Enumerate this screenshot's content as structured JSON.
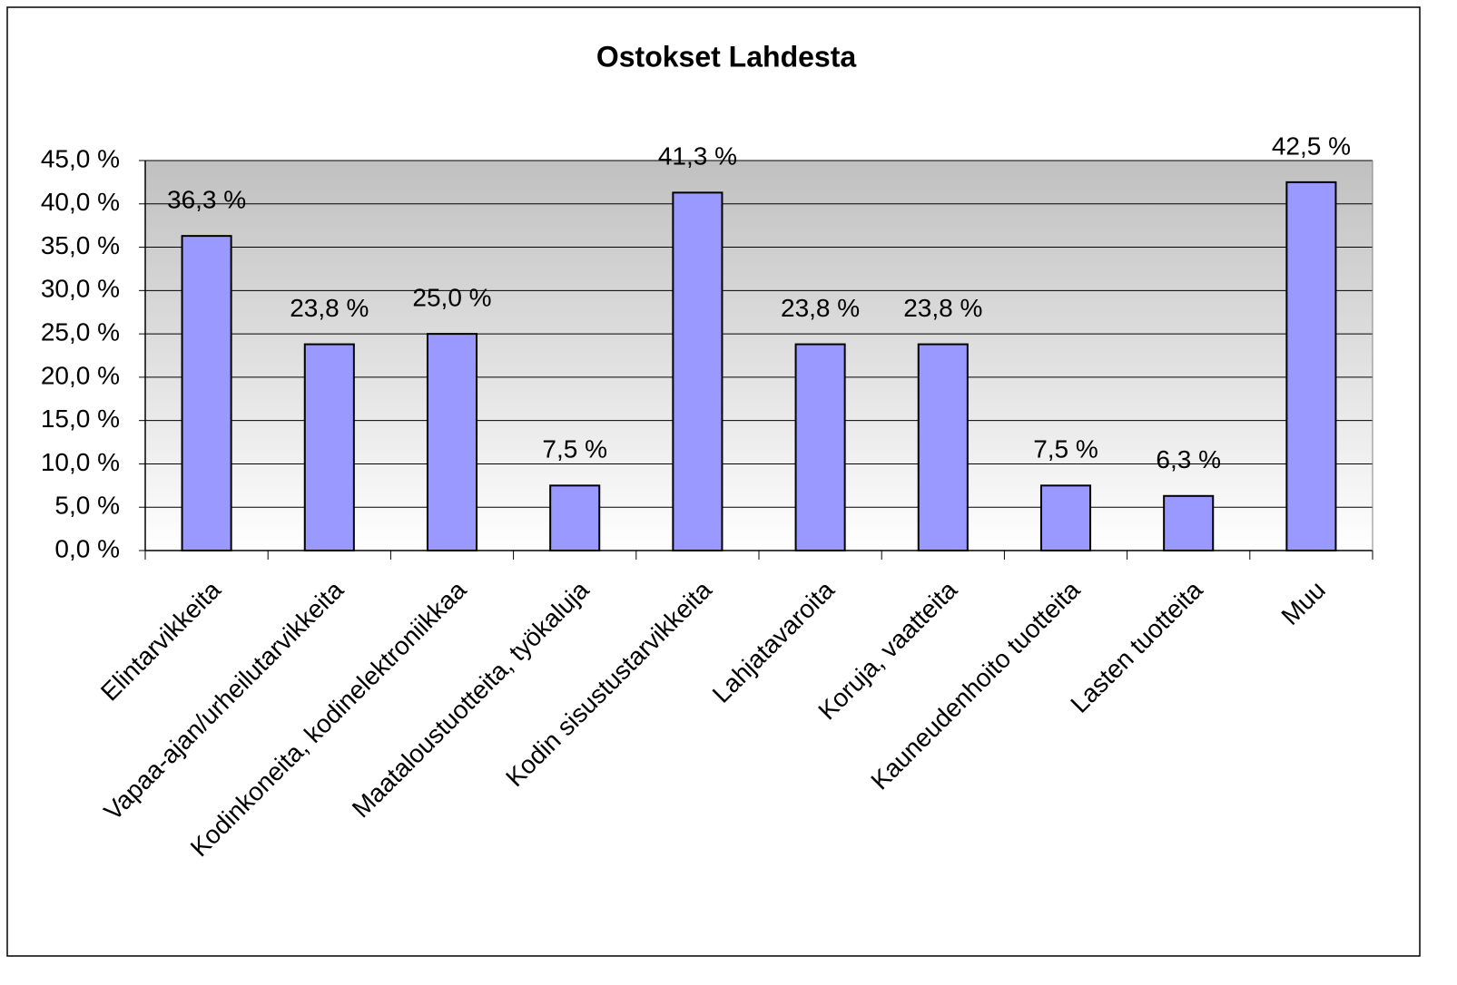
{
  "chart_data": {
    "type": "bar",
    "title": "Ostokset Lahdesta",
    "categories": [
      "Elintarvikkeita",
      "Vapaa-ajan/urheilutarvikkeita",
      "Kodinkoneita, kodinelektroniikkaa",
      "Maataloustuotteita, työkaluja",
      "Kodin sisustustarvikkeita",
      "Lahjatavaroita",
      "Koruja, vaatteita",
      "Kauneudenhoito tuotteita",
      "Lasten tuotteita",
      "Muu"
    ],
    "values": [
      36.3,
      23.8,
      25.0,
      7.5,
      41.3,
      23.8,
      23.8,
      7.5,
      6.3,
      42.5
    ],
    "value_labels": [
      "36,3 %",
      "23,8 %",
      "25,0 %",
      "7,5 %",
      "41,3 %",
      "23,8 %",
      "23,8 %",
      "7,5 %",
      "6,3 %",
      "42,5 %"
    ],
    "color": "#9999ff",
    "ylim": [
      0,
      45
    ],
    "yticks": [
      {
        "value": 0,
        "label": "0,0 %"
      },
      {
        "value": 5,
        "label": "5,0 %"
      },
      {
        "value": 10,
        "label": "10,0 %"
      },
      {
        "value": 15,
        "label": "15,0 %"
      },
      {
        "value": 20,
        "label": "20,0 %"
      },
      {
        "value": 25,
        "label": "25,0 %"
      },
      {
        "value": 30,
        "label": "30,0 %"
      },
      {
        "value": 35,
        "label": "35,0 %"
      },
      {
        "value": 40,
        "label": "40,0 %"
      },
      {
        "value": 45,
        "label": "45,0 %"
      }
    ],
    "grid": true
  }
}
